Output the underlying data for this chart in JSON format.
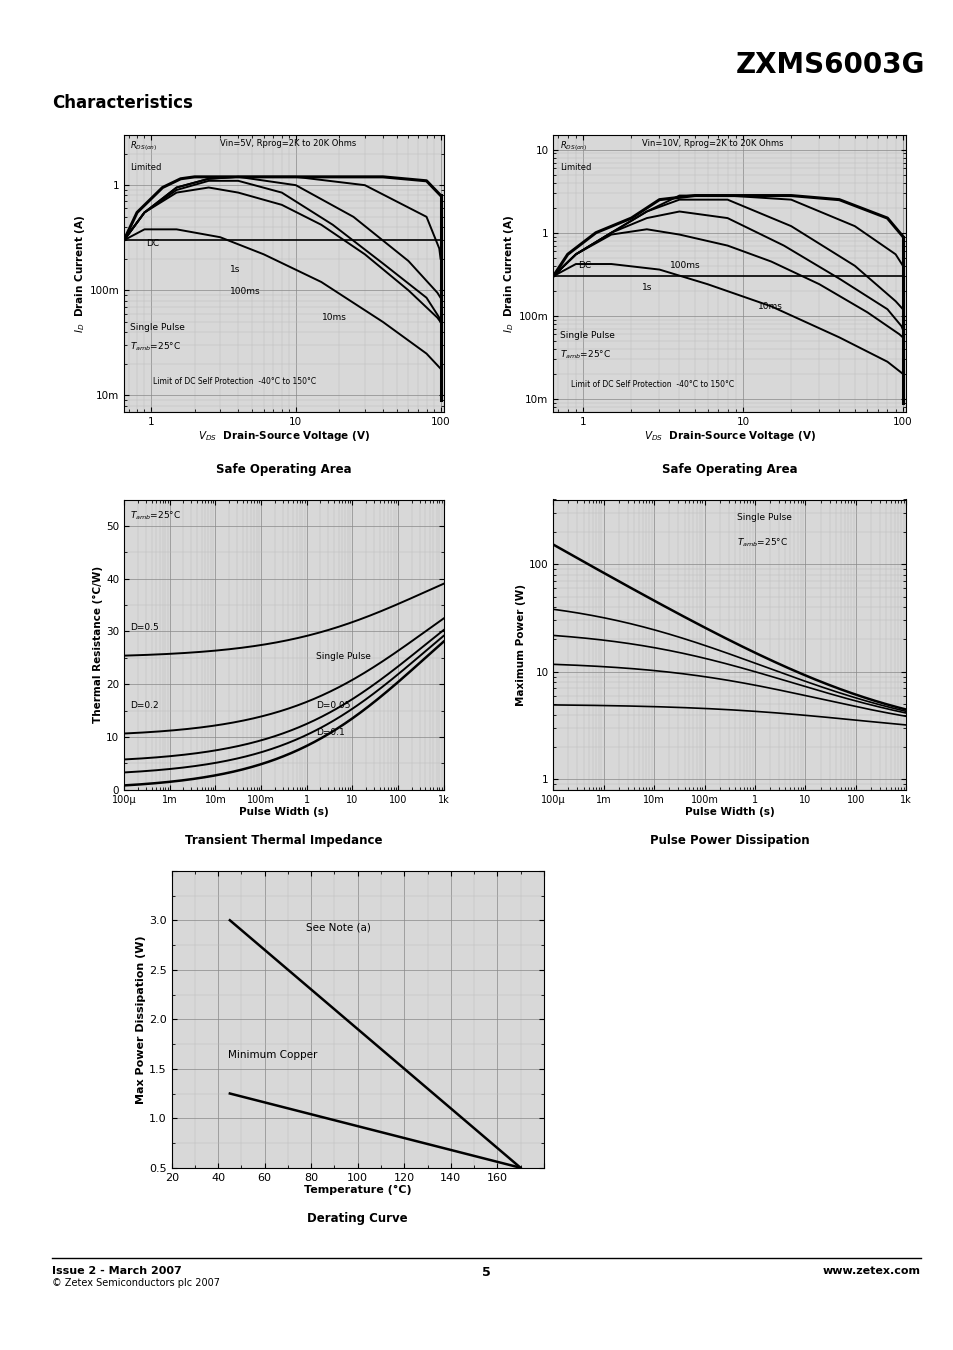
{
  "title": "ZXMS6003G",
  "section_title": "Characteristics",
  "footer_left": "Issue 2 - March 2007",
  "footer_center": "5",
  "footer_right": "www.zetex.com",
  "footer_copy": "© Zetex Semiconductors plc 2007",
  "bg_color": "#ffffff",
  "line_color": "#000000",
  "grid_color": "#bbbbbb",
  "plot_bg": "#e8e8e8"
}
